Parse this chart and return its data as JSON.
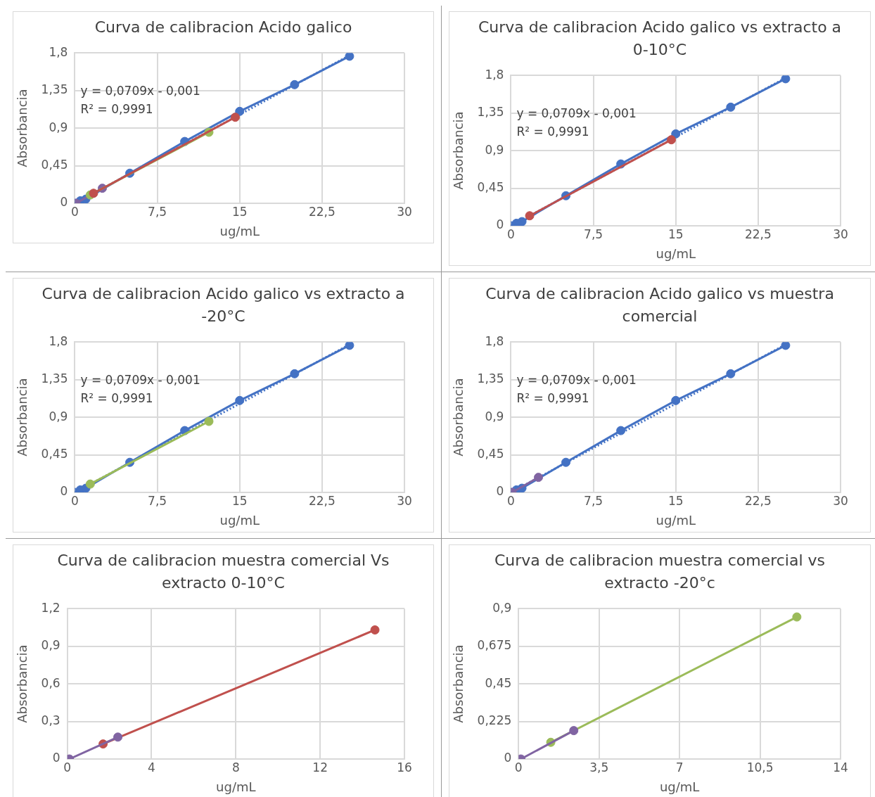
{
  "chart_data": [
    {
      "type": "line",
      "title": "Curva de calibracion Acido galico",
      "xlabel": "ug/mL",
      "ylabel": "Absorbancia",
      "xlim": [
        0,
        30
      ],
      "xticks": [
        0,
        {
          "value": 7.5,
          "label": "7,5"
        },
        15,
        {
          "value": 22.5,
          "label": "22,5"
        },
        30
      ],
      "ylim": [
        0,
        1.8
      ],
      "yticks": [
        {
          "value": 0,
          "label": "0"
        },
        {
          "value": 0.45,
          "label": "0,45"
        },
        {
          "value": 0.9,
          "label": "0,9"
        },
        {
          "value": 1.35,
          "label": "1,35"
        },
        {
          "value": 1.8,
          "label": "1,8"
        }
      ],
      "grid": true,
      "legend": false,
      "annotations": [
        "y = 0,0709x - 0,001",
        "R² = 0,9991"
      ],
      "series": [
        {
          "color": "#c0504d",
          "marker": "circle",
          "x": [
            1.7,
            14.6
          ],
          "values": [
            0.12,
            1.03
          ]
        },
        {
          "color": "#9bbb59",
          "marker": "circle",
          "x": [
            1.4,
            12.2
          ],
          "values": [
            0.1,
            0.85
          ]
        },
        {
          "color": "#8064a2",
          "marker": "circle",
          "x": [
            0.1,
            2.5
          ],
          "values": [
            0,
            0.18
          ]
        },
        {
          "type": "line",
          "line_style": "dotted",
          "color": "#4472c4",
          "x": [
            0,
            25
          ],
          "values": [
            0,
            1.77
          ]
        },
        {
          "color": "#4472c4",
          "marker": "circle",
          "x": [
            0,
            0.5,
            1,
            5,
            10,
            15,
            20,
            25
          ],
          "values": [
            0,
            0.03,
            0.05,
            0.36,
            0.74,
            1.1,
            1.42,
            1.76
          ]
        }
      ]
    },
    {
      "type": "line",
      "title": "Curva de calibracion Acido galico vs extracto a 0-10°C",
      "xlabel": "ug/mL",
      "ylabel": "Absorbancia",
      "xlim": [
        0,
        30
      ],
      "xticks": [
        0,
        {
          "value": 7.5,
          "label": "7,5"
        },
        15,
        {
          "value": 22.5,
          "label": "22,5"
        },
        30
      ],
      "ylim": [
        0,
        1.8
      ],
      "yticks": [
        {
          "value": 0,
          "label": "0"
        },
        {
          "value": 0.45,
          "label": "0,45"
        },
        {
          "value": 0.9,
          "label": "0,9"
        },
        {
          "value": 1.35,
          "label": "1,35"
        },
        {
          "value": 1.8,
          "label": "1,8"
        }
      ],
      "grid": true,
      "legend": false,
      "annotations": [
        "y = 0,0709x - 0,001",
        "R² = 0,9991"
      ],
      "series": [
        {
          "color": "#c0504d",
          "marker": "circle",
          "x": [
            1.7,
            14.6
          ],
          "values": [
            0.12,
            1.03
          ]
        },
        {
          "type": "line",
          "line_style": "dotted",
          "color": "#4472c4",
          "x": [
            0,
            25
          ],
          "values": [
            0,
            1.77
          ]
        },
        {
          "color": "#4472c4",
          "marker": "circle",
          "x": [
            0,
            0.5,
            1,
            5,
            10,
            15,
            20,
            25
          ],
          "values": [
            0,
            0.03,
            0.05,
            0.36,
            0.74,
            1.1,
            1.42,
            1.76
          ]
        }
      ]
    },
    {
      "type": "line",
      "title": "Curva de calibracion Acido galico vs extracto a -20°C",
      "xlabel": "ug/mL",
      "ylabel": "Absorbancia",
      "xlim": [
        0,
        30
      ],
      "xticks": [
        0,
        {
          "value": 7.5,
          "label": "7,5"
        },
        15,
        {
          "value": 22.5,
          "label": "22,5"
        },
        30
      ],
      "ylim": [
        0,
        1.8
      ],
      "yticks": [
        {
          "value": 0,
          "label": "0"
        },
        {
          "value": 0.45,
          "label": "0,45"
        },
        {
          "value": 0.9,
          "label": "0,9"
        },
        {
          "value": 1.35,
          "label": "1,35"
        },
        {
          "value": 1.8,
          "label": "1,8"
        }
      ],
      "grid": true,
      "legend": false,
      "annotations": [
        "y = 0,0709x - 0,001",
        "R² = 0,9991"
      ],
      "series": [
        {
          "color": "#9bbb59",
          "marker": "circle",
          "x": [
            1.4,
            12.2
          ],
          "values": [
            0.1,
            0.85
          ]
        },
        {
          "type": "line",
          "line_style": "dotted",
          "color": "#4472c4",
          "x": [
            0,
            25
          ],
          "values": [
            0,
            1.77
          ]
        },
        {
          "color": "#4472c4",
          "marker": "circle",
          "x": [
            0,
            0.5,
            1,
            5,
            10,
            15,
            20,
            25
          ],
          "values": [
            0,
            0.03,
            0.05,
            0.36,
            0.74,
            1.1,
            1.42,
            1.76
          ]
        }
      ]
    },
    {
      "type": "line",
      "title": "Curva de calibracion Acido galico vs muestra comercial",
      "xlabel": "ug/mL",
      "ylabel": "Absorbancia",
      "xlim": [
        0,
        30
      ],
      "xticks": [
        0,
        {
          "value": 7.5,
          "label": "7,5"
        },
        15,
        {
          "value": 22.5,
          "label": "22,5"
        },
        30
      ],
      "ylim": [
        0,
        1.8
      ],
      "yticks": [
        {
          "value": 0,
          "label": "0"
        },
        {
          "value": 0.45,
          "label": "0,45"
        },
        {
          "value": 0.9,
          "label": "0,9"
        },
        {
          "value": 1.35,
          "label": "1,35"
        },
        {
          "value": 1.8,
          "label": "1,8"
        }
      ],
      "grid": true,
      "legend": false,
      "annotations": [
        "y = 0,0709x - 0,001",
        "R² = 0,9991"
      ],
      "series": [
        {
          "color": "#8064a2",
          "marker": "circle",
          "x": [
            0.1,
            2.5
          ],
          "values": [
            0,
            0.18
          ]
        },
        {
          "type": "line",
          "line_style": "dotted",
          "color": "#4472c4",
          "x": [
            0,
            25
          ],
          "values": [
            0,
            1.77
          ]
        },
        {
          "color": "#4472c4",
          "marker": "circle",
          "x": [
            0,
            0.5,
            1,
            5,
            10,
            15,
            20,
            25
          ],
          "values": [
            0,
            0.03,
            0.05,
            0.36,
            0.74,
            1.1,
            1.42,
            1.76
          ]
        }
      ]
    },
    {
      "type": "line",
      "title": "Curva de calibracion muestra comercial Vs extracto  0-10°C",
      "xlabel": "ug/mL",
      "ylabel": "Absorbancia",
      "xlim": [
        0,
        16
      ],
      "xticks": [
        0,
        4,
        8,
        12,
        16
      ],
      "ylim": [
        0,
        1.2
      ],
      "yticks": [
        {
          "value": 0,
          "label": "0"
        },
        {
          "value": 0.3,
          "label": "0,3"
        },
        {
          "value": 0.6,
          "label": "0,6"
        },
        {
          "value": 0.9,
          "label": "0,9"
        },
        {
          "value": 1.2,
          "label": "1,2"
        }
      ],
      "grid": true,
      "legend": false,
      "marker": "circle",
      "series": [
        {
          "color": "#8064a2",
          "x": [
            0.1,
            2.4
          ],
          "values": [
            0,
            0.175
          ]
        },
        {
          "color": "#c0504d",
          "x": [
            1.7,
            14.6
          ],
          "values": [
            0.12,
            1.03
          ]
        }
      ]
    },
    {
      "type": "line",
      "title": "Curva de calibracion muestra comercial vs extracto -20°c",
      "xlabel": "ug/mL",
      "ylabel": "Absorbancia",
      "xlim": [
        0,
        14
      ],
      "xticks": [
        0,
        {
          "value": 3.5,
          "label": "3,5"
        },
        7,
        {
          "value": 10.5,
          "label": "10,5"
        },
        14
      ],
      "ylim": [
        0,
        0.9
      ],
      "yticks": [
        {
          "value": 0,
          "label": "0"
        },
        {
          "value": 0.225,
          "label": "0,225"
        },
        {
          "value": 0.45,
          "label": "0,45"
        },
        {
          "value": 0.675,
          "label": "0,675"
        },
        {
          "value": 0.9,
          "label": "0,9"
        }
      ],
      "grid": true,
      "legend": false,
      "marker": "circle",
      "series": [
        {
          "color": "#8064a2",
          "x": [
            0.1,
            2.4
          ],
          "values": [
            0,
            0.17
          ]
        },
        {
          "color": "#9bbb59",
          "x": [
            1.4,
            12.1
          ],
          "values": [
            0.1,
            0.85
          ]
        }
      ]
    }
  ]
}
